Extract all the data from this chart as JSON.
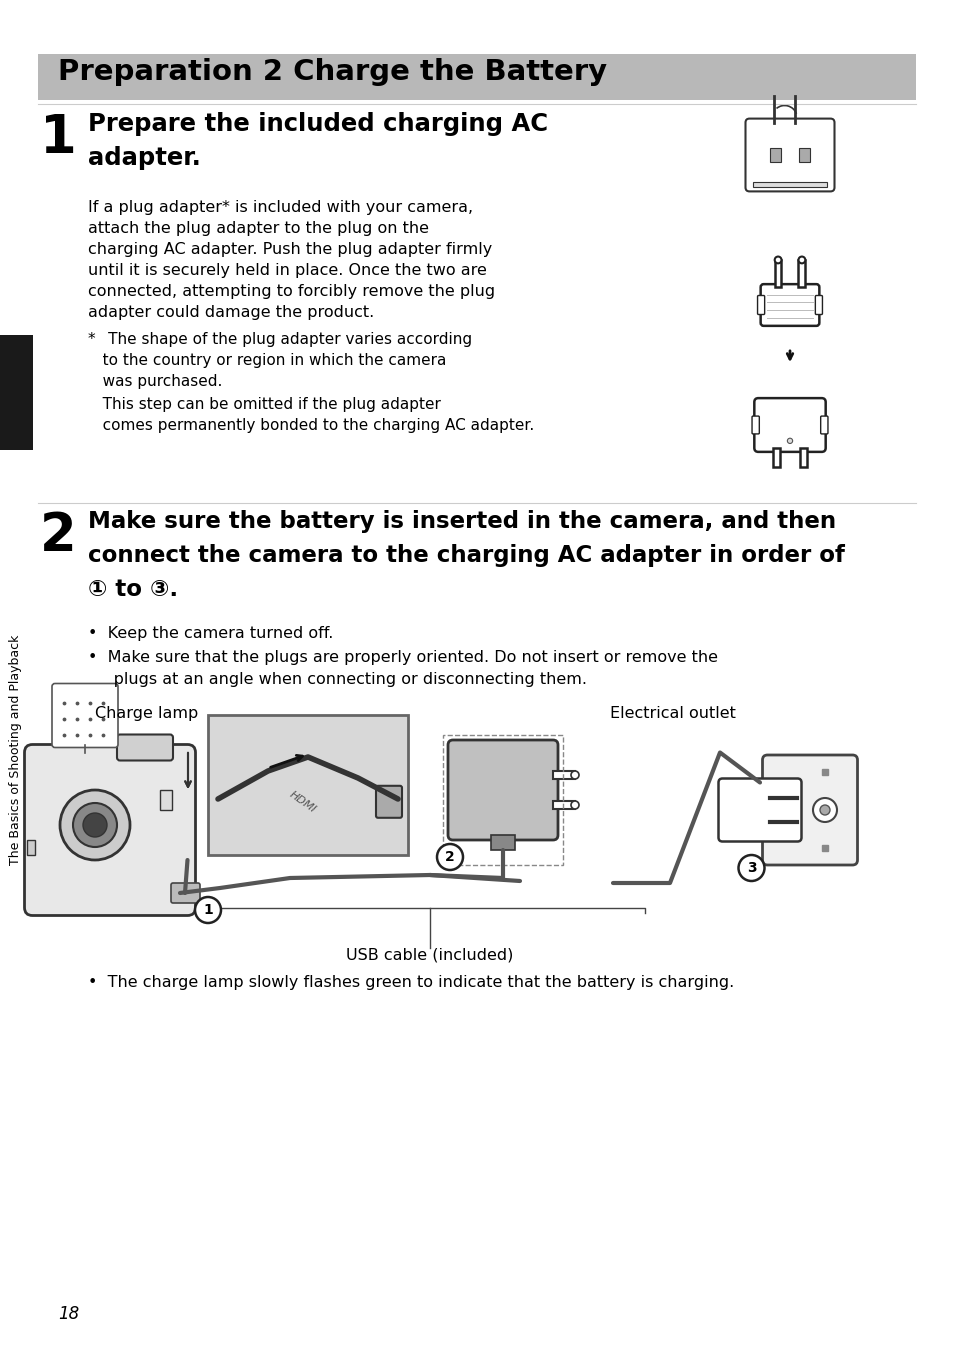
{
  "title": "Preparation 2 Charge the Battery",
  "title_bg": "#b8b8b8",
  "title_color": "#000000",
  "page_bg": "#ffffff",
  "step1_body_lines": [
    "If a plug adapter* is included with your camera,",
    "attach the plug adapter to the plug on the",
    "charging AC adapter. Push the plug adapter firmly",
    "until it is securely held in place. Once the two are",
    "connected, attempting to forcibly remove the plug",
    "adapter could damage the product."
  ],
  "step1_note1_lines": [
    "*  The shape of the plug adapter varies according",
    "   to the country or region in which the camera",
    "   was purchased."
  ],
  "step1_note2_lines": [
    "   This step can be omitted if the plug adapter",
    "   comes permanently bonded to the charging AC adapter."
  ],
  "step2_heading_lines": [
    "Make sure the battery is inserted in the camera, and then",
    "connect the camera to the charging AC adapter in order of",
    "① to ③."
  ],
  "step2_bullet1": "Keep the camera turned off.",
  "step2_bullet2_lines": [
    "Make sure that the plugs are properly oriented. Do not insert or remove the",
    "plugs at an angle when connecting or disconnecting them."
  ],
  "label_charge_lamp": "Charge lamp",
  "label_electrical_outlet": "Electrical outlet",
  "label_usb_cable": "USB cable (included)",
  "step2_final_bullet": "The charge lamp slowly flashes green to indicate that the battery is charging.",
  "sidebar_text": "The Basics of Shooting and Playback",
  "page_number": "18",
  "sidebar_bg": "#1a1a1a",
  "sidebar_text_color": "#ffffff",
  "divider_color": "#cccccc",
  "text_color": "#000000",
  "body_fontsize": 11.5,
  "heading1_fontsize": 17.5,
  "heading2_fontsize": 16.5,
  "step_num_fontsize": 38,
  "title_fontsize": 21
}
